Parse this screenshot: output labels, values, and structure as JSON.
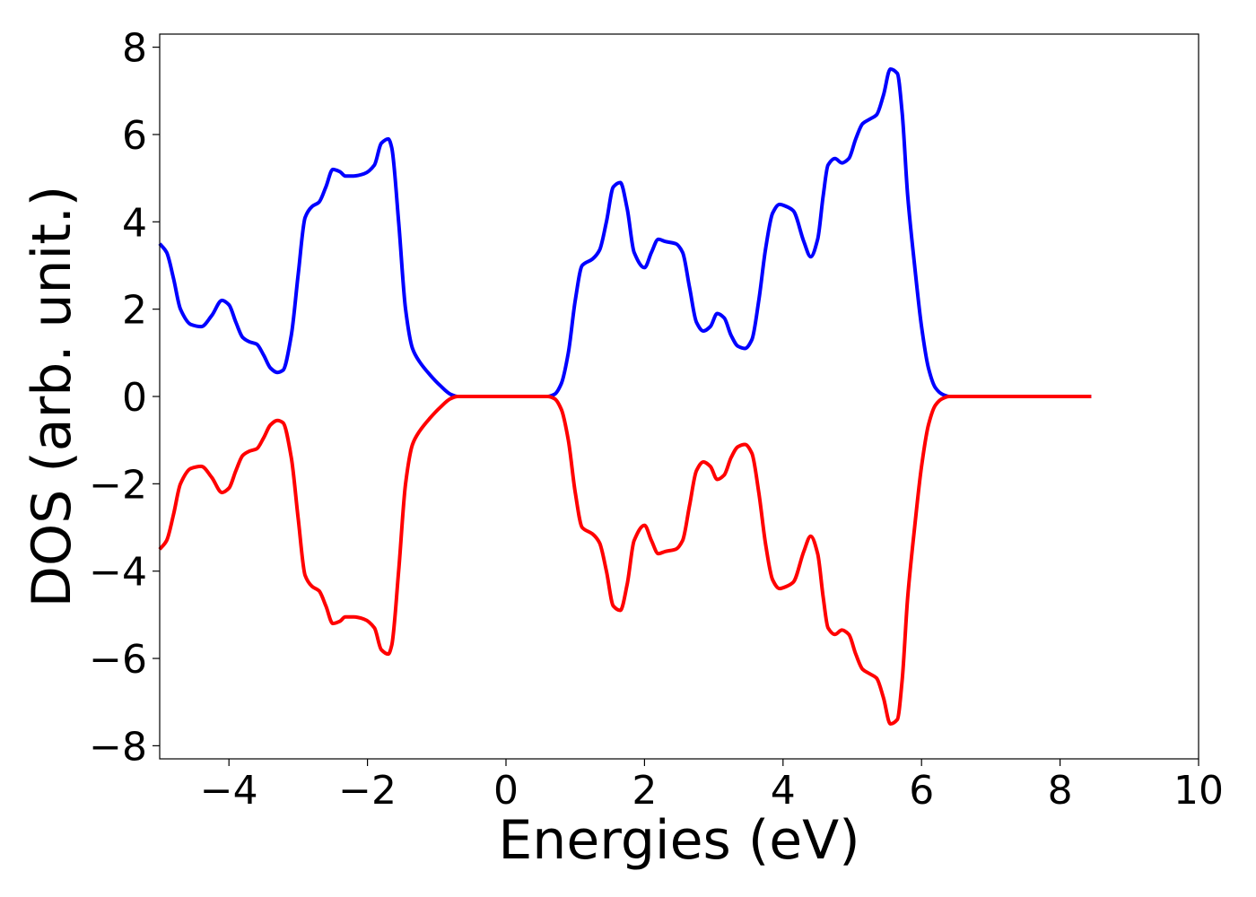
{
  "chart_data": {
    "type": "line",
    "title": "",
    "xlabel": "Energies (eV)",
    "ylabel": "DOS (arb. unit.)",
    "xlim": [
      -5,
      10
    ],
    "ylim": [
      -8.3,
      8.3
    ],
    "xticks": [
      -4,
      -2,
      0,
      2,
      4,
      6,
      8,
      10
    ],
    "yticks": [
      -8,
      -6,
      -4,
      -2,
      0,
      2,
      4,
      6,
      8
    ],
    "xtick_labels": [
      "−4",
      "−2",
      "0",
      "2",
      "4",
      "6",
      "8",
      "10"
    ],
    "ytick_labels": [
      "−8",
      "−6",
      "−4",
      "−2",
      "0",
      "2",
      "4",
      "6",
      "8"
    ],
    "grid": false,
    "legend": "none",
    "series": [
      {
        "color": "#0000ff",
        "x": [
          -5.0,
          -4.9,
          -4.8,
          -4.7,
          -4.55,
          -4.4,
          -4.25,
          -4.1,
          -4.0,
          -3.9,
          -3.8,
          -3.7,
          -3.6,
          -3.5,
          -3.4,
          -3.3,
          -3.22,
          -3.1,
          -3.0,
          -2.9,
          -2.8,
          -2.7,
          -2.6,
          -2.5,
          -2.4,
          -2.32,
          -2.2,
          -2.05,
          -1.9,
          -1.8,
          -1.7,
          -1.65,
          -1.55,
          -1.45,
          -1.35,
          -1.25,
          -1.1,
          -0.95,
          -0.8,
          -0.7,
          -0.6,
          -0.5,
          0.5,
          0.6,
          0.7,
          0.8,
          0.9,
          1.0,
          1.1,
          1.25,
          1.35,
          1.45,
          1.55,
          1.65,
          1.75,
          1.85,
          2.0,
          2.1,
          2.2,
          2.3,
          2.45,
          2.55,
          2.65,
          2.75,
          2.85,
          2.95,
          3.05,
          3.15,
          3.25,
          3.35,
          3.45,
          3.55,
          3.65,
          3.75,
          3.85,
          3.95,
          4.05,
          4.15,
          4.3,
          4.4,
          4.5,
          4.58,
          4.65,
          4.75,
          4.85,
          4.95,
          5.05,
          5.15,
          5.25,
          5.35,
          5.45,
          5.55,
          5.65,
          5.72,
          5.8,
          5.9,
          6.0,
          6.1,
          6.2,
          6.3,
          6.4,
          6.5,
          6.6,
          6.7,
          6.8,
          7.0,
          8.45
        ],
        "y": [
          3.5,
          3.3,
          2.7,
          2.0,
          1.65,
          1.6,
          1.85,
          2.2,
          2.1,
          1.7,
          1.35,
          1.25,
          1.2,
          0.95,
          0.65,
          0.55,
          0.6,
          1.4,
          2.8,
          4.1,
          4.35,
          4.45,
          4.8,
          5.2,
          5.15,
          5.05,
          5.05,
          5.1,
          5.3,
          5.8,
          5.9,
          5.7,
          4.0,
          2.0,
          1.1,
          0.8,
          0.5,
          0.25,
          0.05,
          0.0,
          0.0,
          0.0,
          0.0,
          0.0,
          0.05,
          0.3,
          1.0,
          2.2,
          3.0,
          3.15,
          3.35,
          4.0,
          4.8,
          4.9,
          4.3,
          3.3,
          2.95,
          3.3,
          3.6,
          3.55,
          3.5,
          3.3,
          2.5,
          1.7,
          1.5,
          1.6,
          1.9,
          1.8,
          1.4,
          1.15,
          1.1,
          1.3,
          2.2,
          3.4,
          4.2,
          4.4,
          4.35,
          4.25,
          3.55,
          3.2,
          3.6,
          4.6,
          5.3,
          5.45,
          5.35,
          5.45,
          5.9,
          6.25,
          6.35,
          6.45,
          6.9,
          7.5,
          7.4,
          6.5,
          4.6,
          3.0,
          1.6,
          0.65,
          0.2,
          0.05,
          0.0,
          0.0,
          0.0,
          0.0,
          0.0,
          0.0,
          0.0
        ]
      },
      {
        "color": "#ff0000",
        "x": [
          -5.0,
          -4.9,
          -4.8,
          -4.7,
          -4.55,
          -4.4,
          -4.25,
          -4.1,
          -4.0,
          -3.9,
          -3.8,
          -3.7,
          -3.6,
          -3.5,
          -3.4,
          -3.3,
          -3.22,
          -3.1,
          -3.0,
          -2.9,
          -2.8,
          -2.7,
          -2.6,
          -2.5,
          -2.4,
          -2.32,
          -2.2,
          -2.05,
          -1.9,
          -1.8,
          -1.7,
          -1.65,
          -1.55,
          -1.45,
          -1.35,
          -1.25,
          -1.1,
          -0.95,
          -0.8,
          -0.7,
          -0.6,
          -0.5,
          0.5,
          0.6,
          0.7,
          0.8,
          0.9,
          1.0,
          1.1,
          1.25,
          1.35,
          1.45,
          1.55,
          1.65,
          1.75,
          1.85,
          2.0,
          2.1,
          2.2,
          2.3,
          2.45,
          2.55,
          2.65,
          2.75,
          2.85,
          2.95,
          3.05,
          3.15,
          3.25,
          3.35,
          3.45,
          3.55,
          3.65,
          3.75,
          3.85,
          3.95,
          4.05,
          4.15,
          4.3,
          4.4,
          4.5,
          4.58,
          4.65,
          4.75,
          4.85,
          4.95,
          5.05,
          5.15,
          5.25,
          5.35,
          5.45,
          5.55,
          5.65,
          5.72,
          5.8,
          5.9,
          6.0,
          6.1,
          6.2,
          6.3,
          6.4,
          6.5,
          6.6,
          6.7,
          6.8,
          7.0,
          8.45
        ],
        "y": [
          -3.5,
          -3.3,
          -2.7,
          -2.0,
          -1.65,
          -1.6,
          -1.85,
          -2.2,
          -2.1,
          -1.7,
          -1.35,
          -1.25,
          -1.2,
          -0.95,
          -0.65,
          -0.55,
          -0.6,
          -1.4,
          -2.8,
          -4.1,
          -4.35,
          -4.45,
          -4.8,
          -5.2,
          -5.15,
          -5.05,
          -5.05,
          -5.1,
          -5.3,
          -5.8,
          -5.9,
          -5.7,
          -4.0,
          -2.0,
          -1.1,
          -0.8,
          -0.5,
          -0.25,
          -0.05,
          0.0,
          0.0,
          0.0,
          0.0,
          0.0,
          -0.05,
          -0.3,
          -1.0,
          -2.2,
          -3.0,
          -3.15,
          -3.35,
          -4.0,
          -4.8,
          -4.9,
          -4.3,
          -3.3,
          -2.95,
          -3.3,
          -3.6,
          -3.55,
          -3.5,
          -3.3,
          -2.5,
          -1.7,
          -1.5,
          -1.6,
          -1.9,
          -1.8,
          -1.4,
          -1.15,
          -1.1,
          -1.3,
          -2.2,
          -3.4,
          -4.2,
          -4.4,
          -4.35,
          -4.25,
          -3.55,
          -3.2,
          -3.6,
          -4.6,
          -5.3,
          -5.45,
          -5.35,
          -5.45,
          -5.9,
          -6.25,
          -6.35,
          -6.45,
          -6.9,
          -7.5,
          -7.4,
          -6.5,
          -4.6,
          -3.0,
          -1.6,
          -0.65,
          -0.2,
          -0.05,
          0.0,
          0.0,
          0.0,
          0.0,
          0.0,
          0.0,
          0.0
        ]
      }
    ]
  }
}
